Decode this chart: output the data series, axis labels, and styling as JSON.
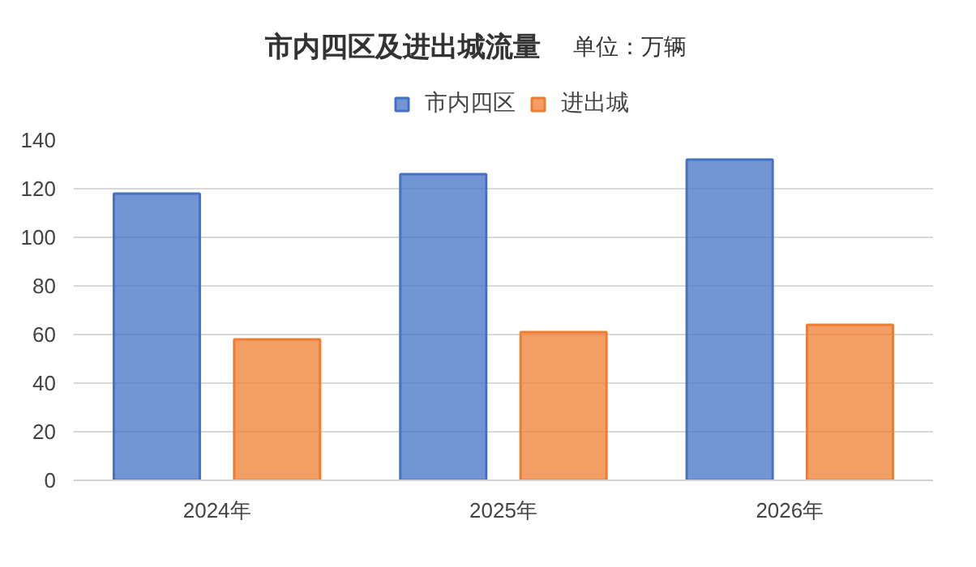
{
  "chart_data": {
    "type": "bar",
    "title": "市内四区及进出城流量",
    "subtitle": "单位：万辆",
    "categories": [
      "2024年",
      "2025年",
      "2026年"
    ],
    "series": [
      {
        "name": "市内四区",
        "color": "#4472c4",
        "values": [
          118,
          126,
          132
        ]
      },
      {
        "name": "进出城",
        "color": "#ed7d31",
        "values": [
          58,
          61,
          64
        ]
      }
    ],
    "ylim": [
      0,
      140
    ],
    "yticks": [
      0,
      20,
      40,
      60,
      80,
      100,
      120,
      140
    ],
    "grid": "y",
    "legend": "top"
  }
}
